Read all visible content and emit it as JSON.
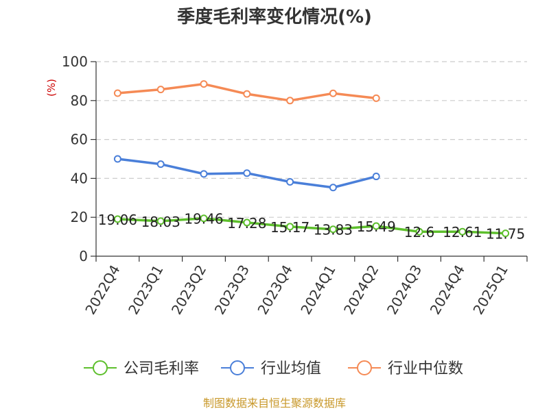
{
  "chart_data": {
    "type": "line",
    "title": "季度毛利率变化情况(%)",
    "ylabel": "(%)",
    "xlabel": "",
    "ylim": [
      0,
      100
    ],
    "yticks": [
      "0",
      "20",
      "40",
      "60",
      "80",
      "100"
    ],
    "categories": [
      "2022Q4",
      "2023Q1",
      "2023Q2",
      "2023Q3",
      "2023Q4",
      "2024Q1",
      "2024Q2",
      "2024Q3",
      "2024Q4",
      "2025Q1"
    ],
    "series": [
      {
        "name": "公司毛利率",
        "color": "#5dbf2c",
        "values": [
          19.06,
          18.03,
          19.46,
          17.28,
          15.17,
          13.83,
          15.49,
          12.6,
          12.61,
          11.75
        ],
        "labels": [
          "19.06",
          "18.03",
          "19.46",
          "17.28",
          "15.17",
          "13.83",
          "15.49",
          "12.6",
          "12.61",
          "11.75"
        ]
      },
      {
        "name": "行业均值",
        "color": "#4a7fd9",
        "values": [
          50.0,
          47.3,
          42.3,
          42.7,
          38.2,
          35.3,
          41.0,
          null,
          null,
          null
        ]
      },
      {
        "name": "行业中位数",
        "color": "#f58a55",
        "values": [
          83.8,
          85.7,
          88.5,
          83.4,
          80.0,
          83.7,
          81.2,
          null,
          null,
          null
        ]
      }
    ],
    "legend": "bottom",
    "grid": true,
    "source": "制图数据来自恒生聚源数据库"
  }
}
